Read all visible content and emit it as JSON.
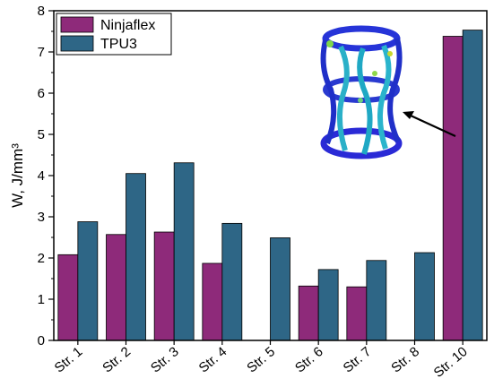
{
  "chart_data": {
    "type": "bar",
    "categories": [
      "Str. 1",
      "Str. 2",
      "Str. 3",
      "Str. 4",
      "Str. 5",
      "Str. 6",
      "Str. 7",
      "Str. 8",
      "Str. 10"
    ],
    "series": [
      {
        "name": "Ninjaflex",
        "color": "#8e2a7a",
        "values": [
          2.08,
          2.57,
          2.63,
          1.87,
          null,
          1.32,
          1.3,
          null,
          7.38
        ]
      },
      {
        "name": "TPU3",
        "color": "#2e6686",
        "values": [
          2.88,
          4.05,
          4.31,
          2.84,
          2.49,
          1.72,
          1.94,
          2.13,
          7.53
        ]
      }
    ],
    "title": "",
    "xlabel": "",
    "ylabel": "W, J/mm³",
    "ylim": [
      0,
      8
    ],
    "yticks": [
      0,
      1,
      2,
      3,
      4,
      5,
      6,
      7,
      8
    ],
    "legend_position": "top-left",
    "grid": false,
    "inset": "3D lattice structure (Str. 10) rendering with arrow pointing to the Str. 10 bars"
  }
}
